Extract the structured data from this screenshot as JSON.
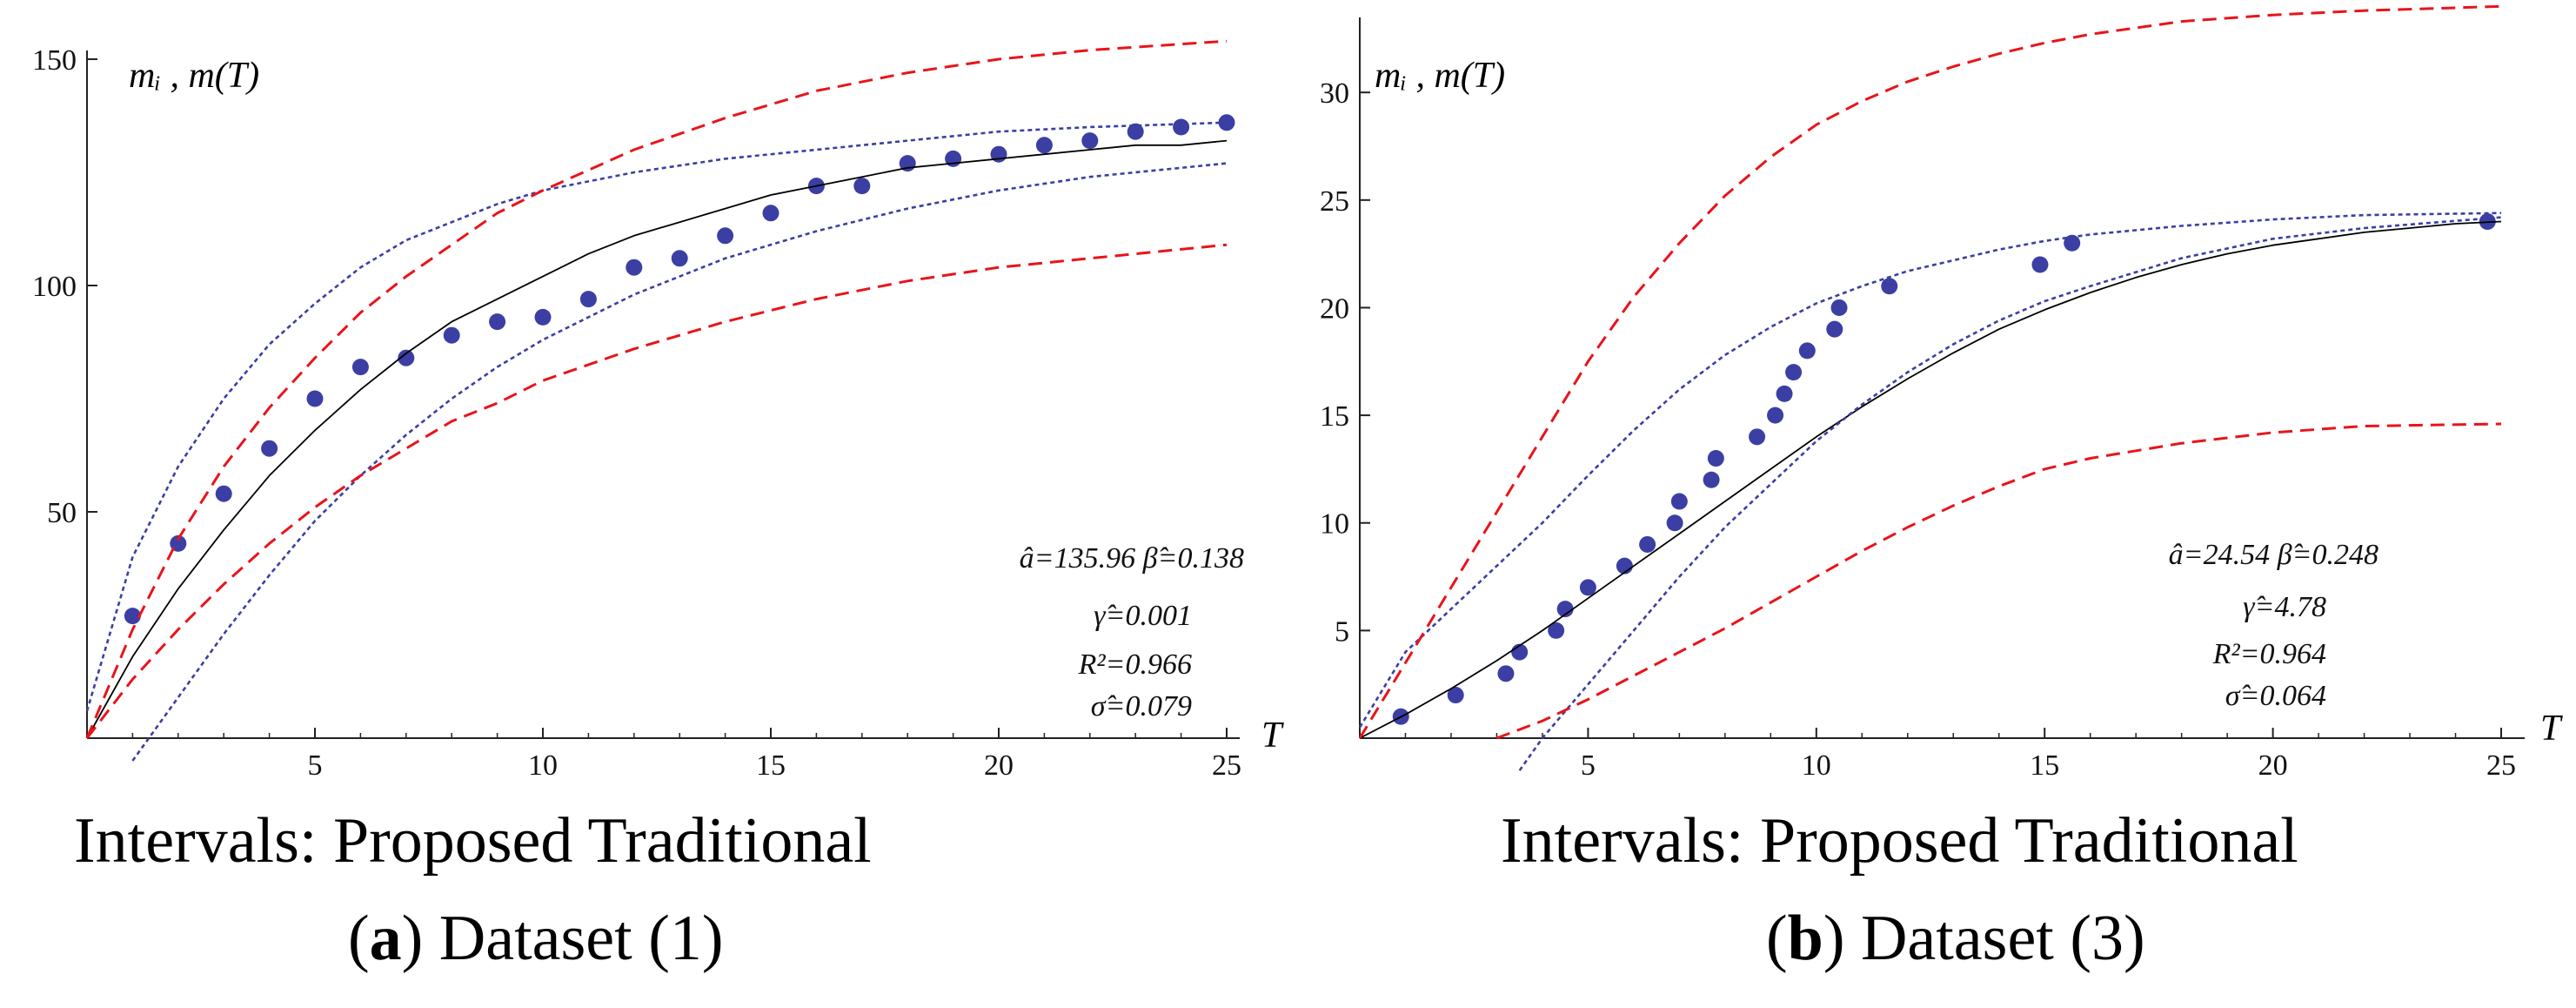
{
  "chart_data": [
    {
      "type": "line",
      "ylabel": "mᵢ ,  m(T)",
      "xlabel": "T",
      "xlim": [
        0,
        25
      ],
      "ylim": [
        0,
        150
      ],
      "xticks": [
        "5",
        "10",
        "15",
        "20",
        "25"
      ],
      "yticks": [
        "50",
        "100",
        "150"
      ],
      "grid": false,
      "colors": {
        "observed": "#3b3fa3",
        "fit": "#000000",
        "proposed": "#3b3fa3",
        "traditional": "#e8141a"
      },
      "annotations": [
        "â=135.96  β̂=0.138",
        "γ̂=0.001",
        "R²=0.966",
        "σ̂=0.079"
      ],
      "legend_text": "Intervals: Proposed Traditional",
      "caption_letter": "a",
      "caption_text": ") Dataset (1)",
      "series": [
        {
          "role": "observed",
          "style": "points",
          "x": [
            1,
            2,
            3,
            4,
            5,
            6,
            7,
            8,
            9,
            10,
            11,
            12,
            13,
            14,
            15,
            16,
            17,
            18,
            19,
            20,
            21,
            22,
            23,
            24,
            25
          ],
          "y": [
            27,
            43,
            54,
            64,
            75,
            82,
            84,
            89,
            92,
            93,
            97,
            104,
            106,
            111,
            116,
            122,
            122,
            127,
            128,
            129,
            131,
            132,
            134,
            135,
            136
          ]
        },
        {
          "role": "fit",
          "style": "solid",
          "x": [
            0,
            1,
            2,
            3,
            4,
            5,
            6,
            7,
            8,
            9,
            10,
            11,
            12,
            13,
            14,
            15,
            16,
            17,
            18,
            19,
            20,
            21,
            22,
            23,
            24,
            25
          ],
          "y": [
            0,
            18,
            33,
            46,
            58,
            68,
            77,
            85,
            92,
            97,
            102,
            107,
            111,
            114,
            117,
            120,
            122,
            124,
            126,
            127,
            128,
            129,
            130,
            131,
            131,
            132
          ]
        },
        {
          "role": "proposed",
          "style": "dotted",
          "x": [
            0,
            1,
            2,
            3,
            4,
            5,
            6,
            7,
            8,
            9,
            10,
            12,
            14,
            16,
            18,
            20,
            22,
            25
          ],
          "y": [
            6,
            40,
            60,
            75,
            87,
            96,
            104,
            110,
            114,
            118,
            121,
            125,
            128,
            130,
            132,
            134,
            135,
            136
          ]
        },
        {
          "role": "proposed",
          "style": "dotted",
          "x": [
            1,
            2,
            3,
            4,
            5,
            6,
            7,
            8,
            9,
            10,
            12,
            14,
            16,
            18,
            20,
            22,
            25
          ],
          "y": [
            -5,
            9,
            23,
            36,
            48,
            58,
            67,
            75,
            82,
            88,
            98,
            106,
            112,
            117,
            121,
            124,
            127
          ]
        },
        {
          "role": "traditional",
          "style": "dashed",
          "x": [
            0,
            1,
            2,
            3,
            4,
            5,
            6,
            7,
            8,
            9,
            10,
            12,
            14,
            16,
            18,
            20,
            22,
            25
          ],
          "y": [
            0,
            24,
            44,
            60,
            73,
            84,
            94,
            102,
            109,
            116,
            121,
            130,
            137,
            143,
            147,
            150,
            152,
            154
          ]
        },
        {
          "role": "traditional",
          "style": "dashed",
          "x": [
            0,
            1,
            2,
            3,
            4,
            5,
            6,
            7,
            8,
            9,
            10,
            12,
            14,
            16,
            18,
            20,
            22,
            25
          ],
          "y": [
            0,
            13,
            24,
            34,
            43,
            51,
            58,
            64,
            70,
            74,
            79,
            86,
            92,
            97,
            101,
            104,
            106,
            109
          ]
        }
      ]
    },
    {
      "type": "line",
      "ylabel": "mᵢ ,  m(T)",
      "xlabel": "T",
      "xlim": [
        0,
        25
      ],
      "ylim": [
        0,
        33
      ],
      "xticks": [
        "5",
        "10",
        "15",
        "20",
        "25"
      ],
      "yticks": [
        "5",
        "10",
        "15",
        "20",
        "25",
        "30"
      ],
      "grid": false,
      "colors": {
        "observed": "#3b3fa3",
        "fit": "#000000",
        "proposed": "#3b3fa3",
        "traditional": "#e8141a"
      },
      "annotations": [
        "â=24.54  β̂=0.248",
        "γ̂=4.78",
        "R²=0.964",
        "σ̂=0.064"
      ],
      "legend_text": "Intervals: Proposed Traditional",
      "caption_letter": "b",
      "caption_text": ") Dataset (3)",
      "series": [
        {
          "role": "observed",
          "style": "points",
          "x": [
            0.9,
            2.1,
            3.2,
            3.5,
            4.3,
            4.5,
            5,
            5.8,
            6.3,
            6.9,
            7,
            7.7,
            7.8,
            8.7,
            9.1,
            9.3,
            9.5,
            9.8,
            10.4,
            10.5,
            11.6,
            14.9,
            15.6,
            24.7
          ],
          "y": [
            1,
            2,
            3,
            4,
            5,
            6,
            7,
            8,
            9,
            10,
            11,
            12,
            13,
            14,
            15,
            16,
            17,
            18,
            19,
            20,
            21,
            22,
            23,
            24
          ]
        },
        {
          "role": "fit",
          "style": "solid",
          "x": [
            0,
            1,
            2,
            3,
            4,
            5,
            6,
            7,
            8,
            9,
            10,
            11,
            12,
            13,
            14,
            15,
            16,
            17,
            18,
            19,
            20,
            21,
            22,
            23,
            24,
            25
          ],
          "y": [
            0,
            1.1,
            2.3,
            3.6,
            5,
            6.5,
            8,
            9.5,
            11,
            12.5,
            14,
            15.4,
            16.7,
            17.9,
            19,
            19.9,
            20.7,
            21.4,
            22,
            22.5,
            22.9,
            23.2,
            23.5,
            23.7,
            23.9,
            24
          ]
        },
        {
          "role": "proposed",
          "style": "dotted",
          "x": [
            0,
            1,
            2,
            3,
            4,
            5,
            6,
            7,
            8,
            9,
            10,
            11,
            12,
            13,
            14,
            15,
            16,
            18,
            20,
            22,
            25
          ],
          "y": [
            0.5,
            4,
            6,
            8,
            10,
            12.2,
            14.3,
            16.2,
            17.8,
            19.1,
            20.2,
            21,
            21.7,
            22.2,
            22.7,
            23.1,
            23.4,
            23.8,
            24.1,
            24.3,
            24.4
          ]
        },
        {
          "role": "proposed",
          "style": "dotted",
          "x": [
            3.5,
            4,
            5,
            6,
            7,
            8,
            9,
            10,
            11,
            12,
            13,
            14,
            15,
            16,
            18,
            20,
            22,
            25
          ],
          "y": [
            -1.5,
            0,
            2.5,
            5,
            7.5,
            9.8,
            11.8,
            13.8,
            15.5,
            17,
            18.3,
            19.4,
            20.3,
            21,
            22.3,
            23.2,
            23.7,
            24.2
          ]
        },
        {
          "role": "traditional",
          "style": "dashed",
          "x": [
            0,
            1,
            2,
            3,
            4,
            5,
            6,
            7,
            8,
            9,
            10,
            11,
            12,
            13,
            14,
            15,
            16,
            18,
            20,
            22,
            25
          ],
          "y": [
            0,
            3.5,
            7,
            10.5,
            14,
            17.5,
            20.5,
            23,
            25.2,
            27,
            28.5,
            29.6,
            30.5,
            31.2,
            31.8,
            32.3,
            32.7,
            33.3,
            33.6,
            33.8,
            34
          ]
        },
        {
          "role": "traditional",
          "style": "dashed",
          "x": [
            3,
            4,
            5,
            6,
            7,
            8,
            9,
            10,
            11,
            12,
            13,
            14,
            15,
            16,
            18,
            20,
            22,
            25
          ],
          "y": [
            0,
            0.8,
            1.8,
            2.9,
            4,
            5.1,
            6.3,
            7.5,
            8.7,
            9.8,
            10.8,
            11.7,
            12.5,
            13,
            13.7,
            14.2,
            14.5,
            14.6
          ]
        }
      ]
    }
  ]
}
